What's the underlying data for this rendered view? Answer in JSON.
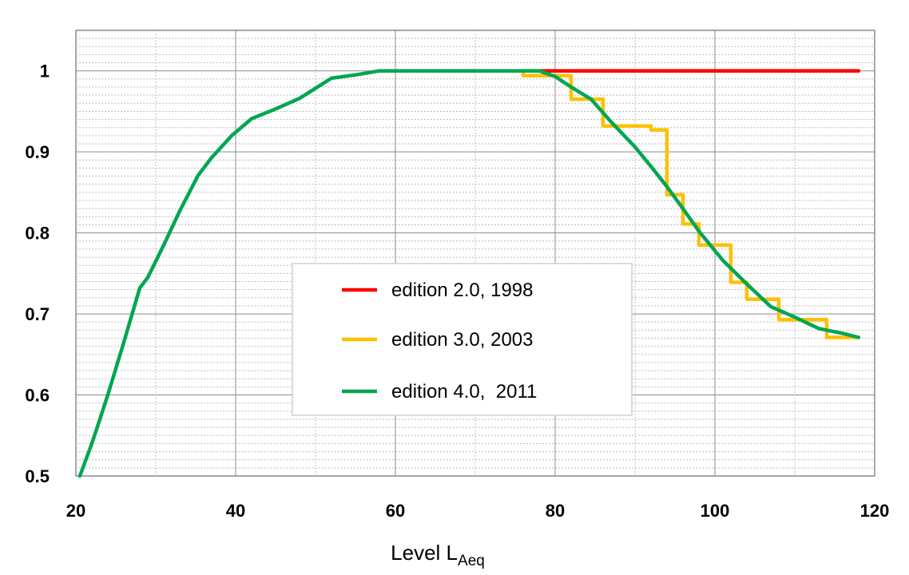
{
  "chart_data": {
    "type": "line",
    "xlabel": "Level L",
    "xlabel_subscript": "Aeq",
    "ylabel": "",
    "xlim": [
      20,
      120
    ],
    "ylim": [
      0.5,
      1.05
    ],
    "xticks": [
      "20",
      "40",
      "60",
      "80",
      "100",
      "120"
    ],
    "yticks": [
      "0.5",
      "0.6",
      "0.7",
      "0.8",
      "0.9",
      "1"
    ],
    "grid": true,
    "legend_position": "center",
    "series": [
      {
        "name": "edition 2.0, 1998",
        "color": "#ff0000",
        "x": [
          58,
          118
        ],
        "y": [
          1.0,
          1.0
        ]
      },
      {
        "name": "edition 3.0, 2003",
        "color": "#ffc000",
        "x": [
          76,
          76,
          82,
          82,
          86,
          86,
          92,
          92,
          94,
          94,
          96,
          96,
          98,
          98,
          102,
          102,
          104,
          104,
          108,
          108,
          114,
          114,
          118
        ],
        "y": [
          1.0,
          0.994,
          0.994,
          0.965,
          0.965,
          0.932,
          0.932,
          0.927,
          0.927,
          0.847,
          0.847,
          0.811,
          0.811,
          0.785,
          0.785,
          0.739,
          0.739,
          0.718,
          0.718,
          0.693,
          0.693,
          0.671,
          0.671
        ]
      },
      {
        "name": "edition 4.0,  2011",
        "color": "#00a651",
        "x": [
          20.5,
          22,
          24,
          26,
          28,
          29,
          31,
          33,
          35.3,
          37,
          39.5,
          42,
          45,
          48,
          52,
          55,
          58,
          65,
          72,
          78,
          80,
          82,
          84.5,
          87,
          90,
          92,
          94,
          96,
          98,
          101,
          104,
          107,
          110,
          113,
          116,
          118
        ],
        "y": [
          0.5,
          0.54,
          0.6,
          0.665,
          0.732,
          0.745,
          0.785,
          0.827,
          0.871,
          0.893,
          0.92,
          0.941,
          0.953,
          0.966,
          0.991,
          0.995,
          1.0,
          1.0,
          1.0,
          1.0,
          0.993,
          0.98,
          0.965,
          0.937,
          0.906,
          0.882,
          0.857,
          0.83,
          0.802,
          0.766,
          0.737,
          0.709,
          0.696,
          0.682,
          0.676,
          0.671
        ]
      }
    ]
  }
}
